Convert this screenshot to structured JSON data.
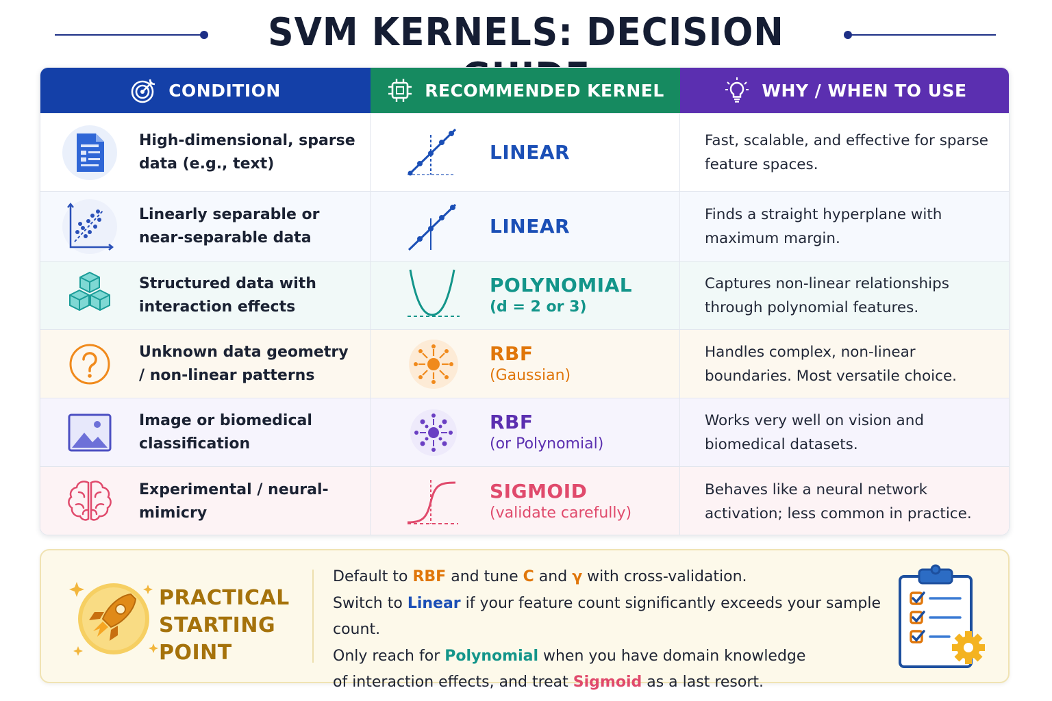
{
  "title": "SVM KERNELS: DECISION GUIDE",
  "header": {
    "condition": "CONDITION",
    "kernel": "RECOMMENDED KERNEL",
    "why": "WHY / WHEN TO USE"
  },
  "colors": {
    "condition_header": "#1440a8",
    "kernel_header": "#168a60",
    "why_header": "#5b2fb0",
    "linear": "#1b4fb6",
    "polynomial": "#13958a",
    "rbf_gaussian": "#e0760a",
    "rbf_polynomial": "#5b2fb0",
    "sigmoid": "#e04a6c",
    "practical_title": "#a5720b"
  },
  "rows": [
    {
      "condition": "High-dimensional, sparse data (e.g., text)",
      "condition_icon": "document-icon",
      "kernel": "LINEAR",
      "kernel_sub": "",
      "kernel_icon": "linear-line-icon",
      "why": "Fast, scalable, and effective for sparse feature spaces."
    },
    {
      "condition": "Linearly separable or near-separable data",
      "condition_icon": "scatter-plot-icon",
      "kernel": "LINEAR",
      "kernel_sub": "",
      "kernel_icon": "linear-line-icon",
      "why": "Finds a straight hyperplane with maximum margin."
    },
    {
      "condition": "Structured data with interaction effects",
      "condition_icon": "cubes-icon",
      "kernel": "POLYNOMIAL",
      "kernel_sub": "(d = 2 or 3)",
      "kernel_icon": "parabola-icon",
      "why": "Captures non-linear relationships through polynomial features."
    },
    {
      "condition": "Unknown data geometry / non-linear patterns",
      "condition_icon": "question-mark-icon",
      "kernel": "RBF",
      "kernel_sub": "(Gaussian)",
      "kernel_icon": "radial-burst-icon",
      "why": "Handles complex, non-linear boundaries. Most versatile choice."
    },
    {
      "condition": "Image or biomedical classification",
      "condition_icon": "image-icon",
      "kernel": "RBF",
      "kernel_sub": "(or Polynomial)",
      "kernel_icon": "radial-burst-icon",
      "why": "Works very well on vision and biomedical datasets."
    },
    {
      "condition": "Experimental / neural-mimicry",
      "condition_icon": "brain-icon",
      "kernel": "SIGMOID",
      "kernel_sub": "(validate carefully)",
      "kernel_icon": "sigmoid-curve-icon",
      "why": "Behaves like a neural network activation; less common in practice."
    }
  ],
  "practical": {
    "title_line1": "PRACTICAL",
    "title_line2": "STARTING POINT",
    "l1_a": "Default to ",
    "l1_rbf": "RBF",
    "l1_b": " and tune ",
    "l1_c": "C",
    "l1_d": " and ",
    "l1_gamma": "γ",
    "l1_e": " with cross-validation.",
    "l2_a": "Switch to ",
    "l2_linear": "Linear",
    "l2_b": " if your feature count significantly exceeds your sample count.",
    "l3_a": "Only reach for ",
    "l3_poly": "Polynomial",
    "l3_b": " when you have domain knowledge",
    "l4_a": "of interaction effects, and treat ",
    "l4_sigmoid": "Sigmoid",
    "l4_b": " as a last resort."
  }
}
